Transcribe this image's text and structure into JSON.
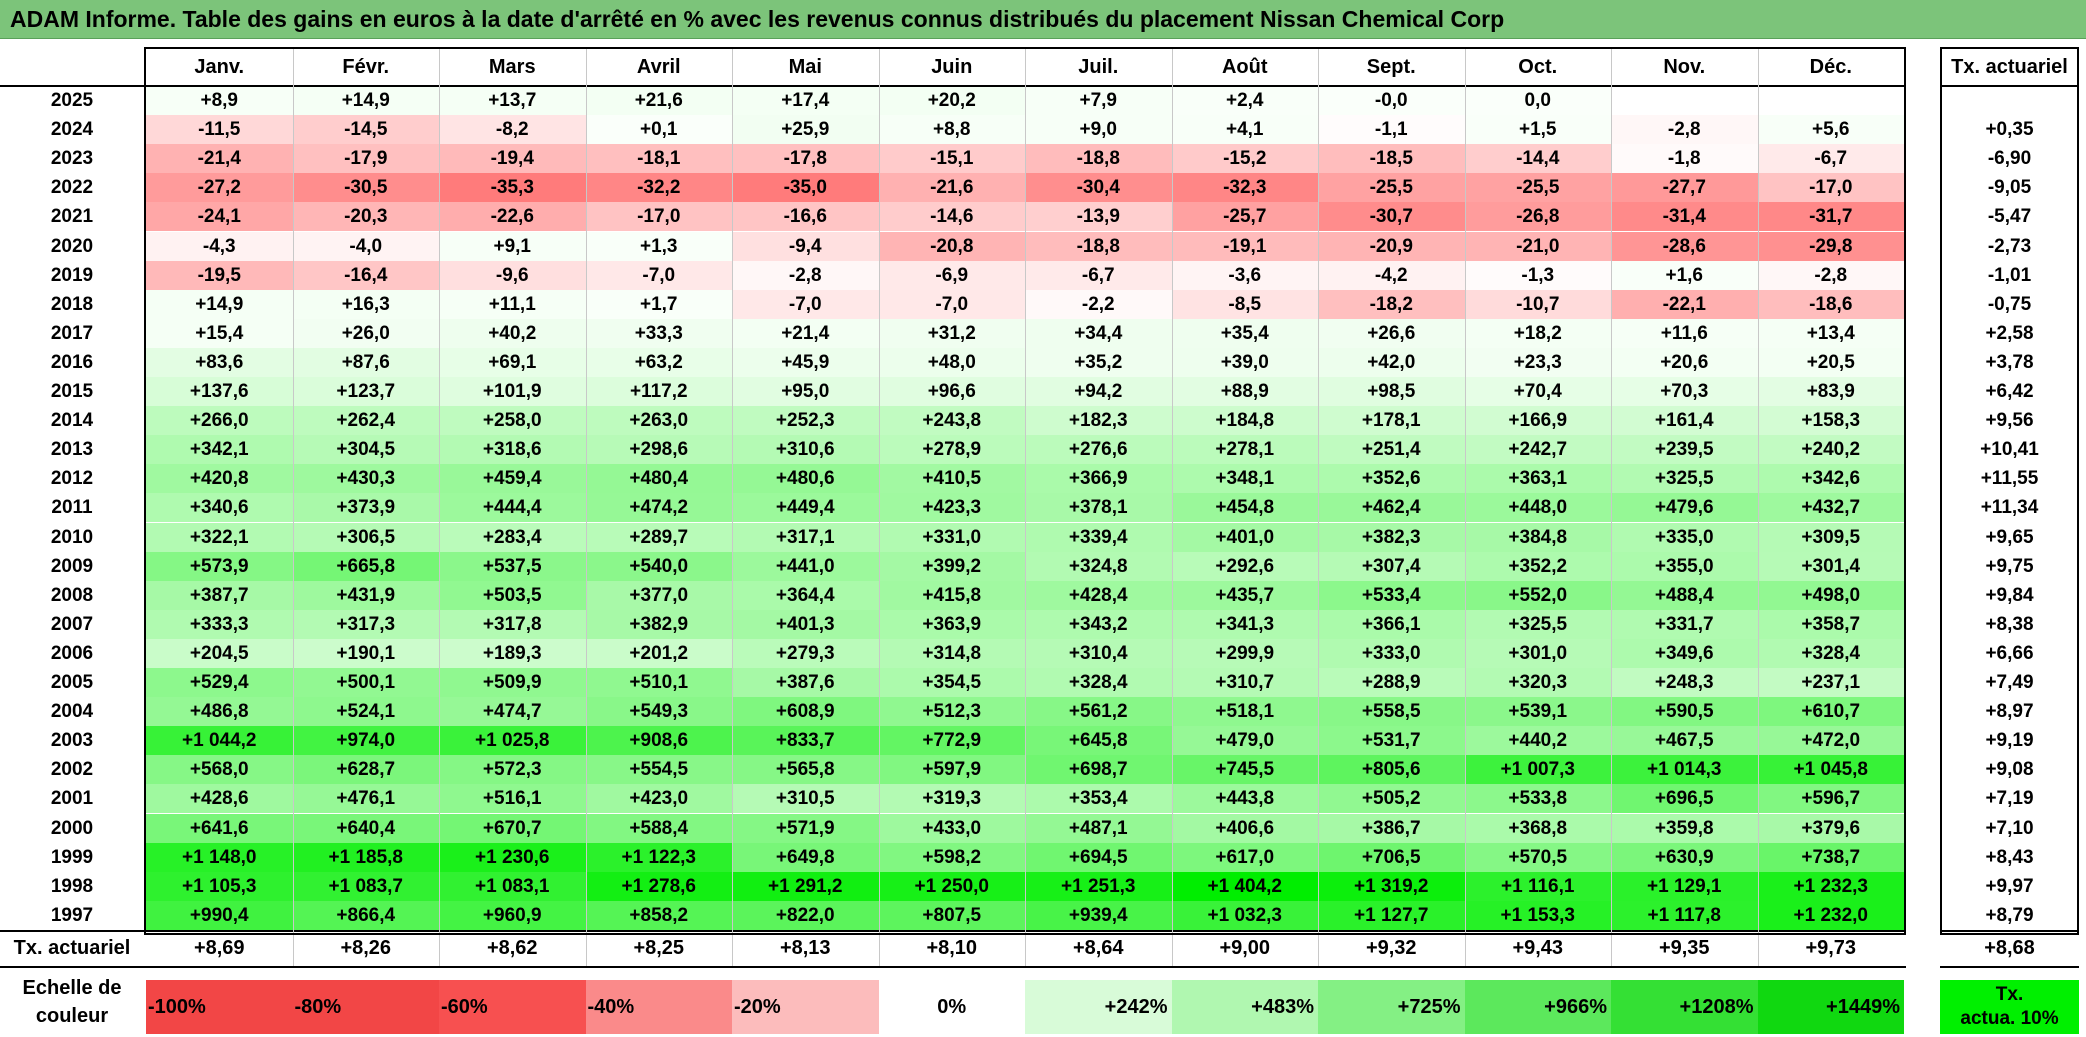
{
  "title": "ADAM Informe. Table des gains en euros à la date d'arrêté en % avec les revenus connus distribués du placement Nissan Chemical Corp",
  "months": [
    "Janv.",
    "Févr.",
    "Mars",
    "Avril",
    "Mai",
    "Juin",
    "Juil.",
    "Août",
    "Sept.",
    "Oct.",
    "Nov.",
    "Déc."
  ],
  "ta_header": "Tx. actuariel",
  "rows": [
    {
      "year": "2025",
      "values": [
        "+8,9",
        "+14,9",
        "+13,7",
        "+21,6",
        "+17,4",
        "+20,2",
        "+7,9",
        "+2,4",
        "-0,0",
        "0,0",
        "",
        ""
      ],
      "ta": ""
    },
    {
      "year": "2024",
      "values": [
        "-11,5",
        "-14,5",
        "-8,2",
        "+0,1",
        "+25,9",
        "+8,8",
        "+9,0",
        "+4,1",
        "-1,1",
        "+1,5",
        "-2,8",
        "+5,6"
      ],
      "ta": "+0,35"
    },
    {
      "year": "2023",
      "values": [
        "-21,4",
        "-17,9",
        "-19,4",
        "-18,1",
        "-17,8",
        "-15,1",
        "-18,8",
        "-15,2",
        "-18,5",
        "-14,4",
        "-1,8",
        "-6,7"
      ],
      "ta": "-6,90"
    },
    {
      "year": "2022",
      "values": [
        "-27,2",
        "-30,5",
        "-35,3",
        "-32,2",
        "-35,0",
        "-21,6",
        "-30,4",
        "-32,3",
        "-25,5",
        "-25,5",
        "-27,7",
        "-17,0"
      ],
      "ta": "-9,05"
    },
    {
      "year": "2021",
      "values": [
        "-24,1",
        "-20,3",
        "-22,6",
        "-17,0",
        "-16,6",
        "-14,6",
        "-13,9",
        "-25,7",
        "-30,7",
        "-26,8",
        "-31,4",
        "-31,7"
      ],
      "ta": "-5,47"
    },
    {
      "year": "2020",
      "values": [
        "-4,3",
        "-4,0",
        "+9,1",
        "+1,3",
        "-9,4",
        "-20,8",
        "-18,8",
        "-19,1",
        "-20,9",
        "-21,0",
        "-28,6",
        "-29,8"
      ],
      "ta": "-2,73"
    },
    {
      "year": "2019",
      "values": [
        "-19,5",
        "-16,4",
        "-9,6",
        "-7,0",
        "-2,8",
        "-6,9",
        "-6,7",
        "-3,6",
        "-4,2",
        "-1,3",
        "+1,6",
        "-2,8"
      ],
      "ta": "-1,01"
    },
    {
      "year": "2018",
      "values": [
        "+14,9",
        "+16,3",
        "+11,1",
        "+1,7",
        "-7,0",
        "-7,0",
        "-2,2",
        "-8,5",
        "-18,2",
        "-10,7",
        "-22,1",
        "-18,6"
      ],
      "ta": "-0,75"
    },
    {
      "year": "2017",
      "values": [
        "+15,4",
        "+26,0",
        "+40,2",
        "+33,3",
        "+21,4",
        "+31,2",
        "+34,4",
        "+35,4",
        "+26,6",
        "+18,2",
        "+11,6",
        "+13,4"
      ],
      "ta": "+2,58"
    },
    {
      "year": "2016",
      "values": [
        "+83,6",
        "+87,6",
        "+69,1",
        "+63,2",
        "+45,9",
        "+48,0",
        "+35,2",
        "+39,0",
        "+42,0",
        "+23,3",
        "+20,6",
        "+20,5"
      ],
      "ta": "+3,78"
    },
    {
      "year": "2015",
      "values": [
        "+137,6",
        "+123,7",
        "+101,9",
        "+117,2",
        "+95,0",
        "+96,6",
        "+94,2",
        "+88,9",
        "+98,5",
        "+70,4",
        "+70,3",
        "+83,9"
      ],
      "ta": "+6,42"
    },
    {
      "year": "2014",
      "values": [
        "+266,0",
        "+262,4",
        "+258,0",
        "+263,0",
        "+252,3",
        "+243,8",
        "+182,3",
        "+184,8",
        "+178,1",
        "+166,9",
        "+161,4",
        "+158,3"
      ],
      "ta": "+9,56"
    },
    {
      "year": "2013",
      "values": [
        "+342,1",
        "+304,5",
        "+318,6",
        "+298,6",
        "+310,6",
        "+278,9",
        "+276,6",
        "+278,1",
        "+251,4",
        "+242,7",
        "+239,5",
        "+240,2"
      ],
      "ta": "+10,41"
    },
    {
      "year": "2012",
      "values": [
        "+420,8",
        "+430,3",
        "+459,4",
        "+480,4",
        "+480,6",
        "+410,5",
        "+366,9",
        "+348,1",
        "+352,6",
        "+363,1",
        "+325,5",
        "+342,6"
      ],
      "ta": "+11,55"
    },
    {
      "year": "2011",
      "values": [
        "+340,6",
        "+373,9",
        "+444,4",
        "+474,2",
        "+449,4",
        "+423,3",
        "+378,1",
        "+454,8",
        "+462,4",
        "+448,0",
        "+479,6",
        "+432,7"
      ],
      "ta": "+11,34"
    },
    {
      "year": "2010",
      "values": [
        "+322,1",
        "+306,5",
        "+283,4",
        "+289,7",
        "+317,1",
        "+331,0",
        "+339,4",
        "+401,0",
        "+382,3",
        "+384,8",
        "+335,0",
        "+309,5"
      ],
      "ta": "+9,65"
    },
    {
      "year": "2009",
      "values": [
        "+573,9",
        "+665,8",
        "+537,5",
        "+540,0",
        "+441,0",
        "+399,2",
        "+324,8",
        "+292,6",
        "+307,4",
        "+352,2",
        "+355,0",
        "+301,4"
      ],
      "ta": "+9,75"
    },
    {
      "year": "2008",
      "values": [
        "+387,7",
        "+431,9",
        "+503,5",
        "+377,0",
        "+364,4",
        "+415,8",
        "+428,4",
        "+435,7",
        "+533,4",
        "+552,0",
        "+488,4",
        "+498,0"
      ],
      "ta": "+9,84"
    },
    {
      "year": "2007",
      "values": [
        "+333,3",
        "+317,3",
        "+317,8",
        "+382,9",
        "+401,3",
        "+363,9",
        "+343,2",
        "+341,3",
        "+366,1",
        "+325,5",
        "+331,7",
        "+358,7"
      ],
      "ta": "+8,38"
    },
    {
      "year": "2006",
      "values": [
        "+204,5",
        "+190,1",
        "+189,3",
        "+201,2",
        "+279,3",
        "+314,8",
        "+310,4",
        "+299,9",
        "+333,0",
        "+301,0",
        "+349,6",
        "+328,4"
      ],
      "ta": "+6,66"
    },
    {
      "year": "2005",
      "values": [
        "+529,4",
        "+500,1",
        "+509,9",
        "+510,1",
        "+387,6",
        "+354,5",
        "+328,4",
        "+310,7",
        "+288,9",
        "+320,3",
        "+248,3",
        "+237,1"
      ],
      "ta": "+7,49"
    },
    {
      "year": "2004",
      "values": [
        "+486,8",
        "+524,1",
        "+474,7",
        "+549,3",
        "+608,9",
        "+512,3",
        "+561,2",
        "+518,1",
        "+558,5",
        "+539,1",
        "+590,5",
        "+610,7"
      ],
      "ta": "+8,97"
    },
    {
      "year": "2003",
      "values": [
        "+1 044,2",
        "+974,0",
        "+1 025,8",
        "+908,6",
        "+833,7",
        "+772,9",
        "+645,8",
        "+479,0",
        "+531,7",
        "+440,2",
        "+467,5",
        "+472,0"
      ],
      "ta": "+9,19"
    },
    {
      "year": "2002",
      "values": [
        "+568,0",
        "+628,7",
        "+572,3",
        "+554,5",
        "+565,8",
        "+597,9",
        "+698,7",
        "+745,5",
        "+805,6",
        "+1 007,3",
        "+1 014,3",
        "+1 045,8"
      ],
      "ta": "+9,08"
    },
    {
      "year": "2001",
      "values": [
        "+428,6",
        "+476,1",
        "+516,1",
        "+423,0",
        "+310,5",
        "+319,3",
        "+353,4",
        "+443,8",
        "+505,2",
        "+533,8",
        "+696,5",
        "+596,7"
      ],
      "ta": "+7,19"
    },
    {
      "year": "2000",
      "values": [
        "+641,6",
        "+640,4",
        "+670,7",
        "+588,4",
        "+571,9",
        "+433,0",
        "+487,1",
        "+406,6",
        "+386,7",
        "+368,8",
        "+359,8",
        "+379,6"
      ],
      "ta": "+7,10"
    },
    {
      "year": "1999",
      "values": [
        "+1 148,0",
        "+1 185,8",
        "+1 230,6",
        "+1 122,3",
        "+649,8",
        "+598,2",
        "+694,5",
        "+617,0",
        "+706,5",
        "+570,5",
        "+630,9",
        "+738,7"
      ],
      "ta": "+8,43"
    },
    {
      "year": "1998",
      "values": [
        "+1 105,3",
        "+1 083,7",
        "+1 083,1",
        "+1 278,6",
        "+1 291,2",
        "+1 250,0",
        "+1 251,3",
        "+1 404,2",
        "+1 319,2",
        "+1 116,1",
        "+1 129,1",
        "+1 232,3"
      ],
      "ta": "+9,97"
    },
    {
      "year": "1997",
      "values": [
        "+990,4",
        "+866,4",
        "+960,9",
        "+858,2",
        "+822,0",
        "+807,5",
        "+939,4",
        "+1 032,3",
        "+1 127,7",
        "+1 153,3",
        "+1 117,8",
        "+1 232,0"
      ],
      "ta": "+8,79"
    }
  ],
  "footer": {
    "label": "Tx. actuariel",
    "values": [
      "+8,69",
      "+8,26",
      "+8,62",
      "+8,25",
      "+8,13",
      "+8,10",
      "+8,64",
      "+9,00",
      "+9,32",
      "+9,43",
      "+9,35",
      "+9,73"
    ],
    "ta": "+8,68"
  },
  "scale": {
    "label_line1": "Echelle de",
    "label_line2": "couleur",
    "items": [
      {
        "text": "-100%",
        "color": "#f24646"
      },
      {
        "text": "-80%",
        "color": "#f24646"
      },
      {
        "text": "-60%",
        "color": "#f75050"
      },
      {
        "text": "-40%",
        "color": "#fa8a8a"
      },
      {
        "text": "-20%",
        "color": "#fcbcbc"
      },
      {
        "text": "0%",
        "color": "#ffffff"
      },
      {
        "text": "+242%",
        "color": "#d8fbd8"
      },
      {
        "text": "+483%",
        "color": "#b0f7b0"
      },
      {
        "text": "+725%",
        "color": "#84f084"
      },
      {
        "text": "+966%",
        "color": "#5ce85c"
      },
      {
        "text": "+1208%",
        "color": "#34e034"
      },
      {
        "text": "+1449%",
        "color": "#10d810"
      }
    ],
    "ta_line1": "Tx.",
    "ta_line2": "actua. 10%",
    "ta_color": "#00f000"
  },
  "colors": {
    "title_bg": "#7cc47a",
    "negative_max": "#ff7878",
    "positive_max": "#00ee00"
  }
}
